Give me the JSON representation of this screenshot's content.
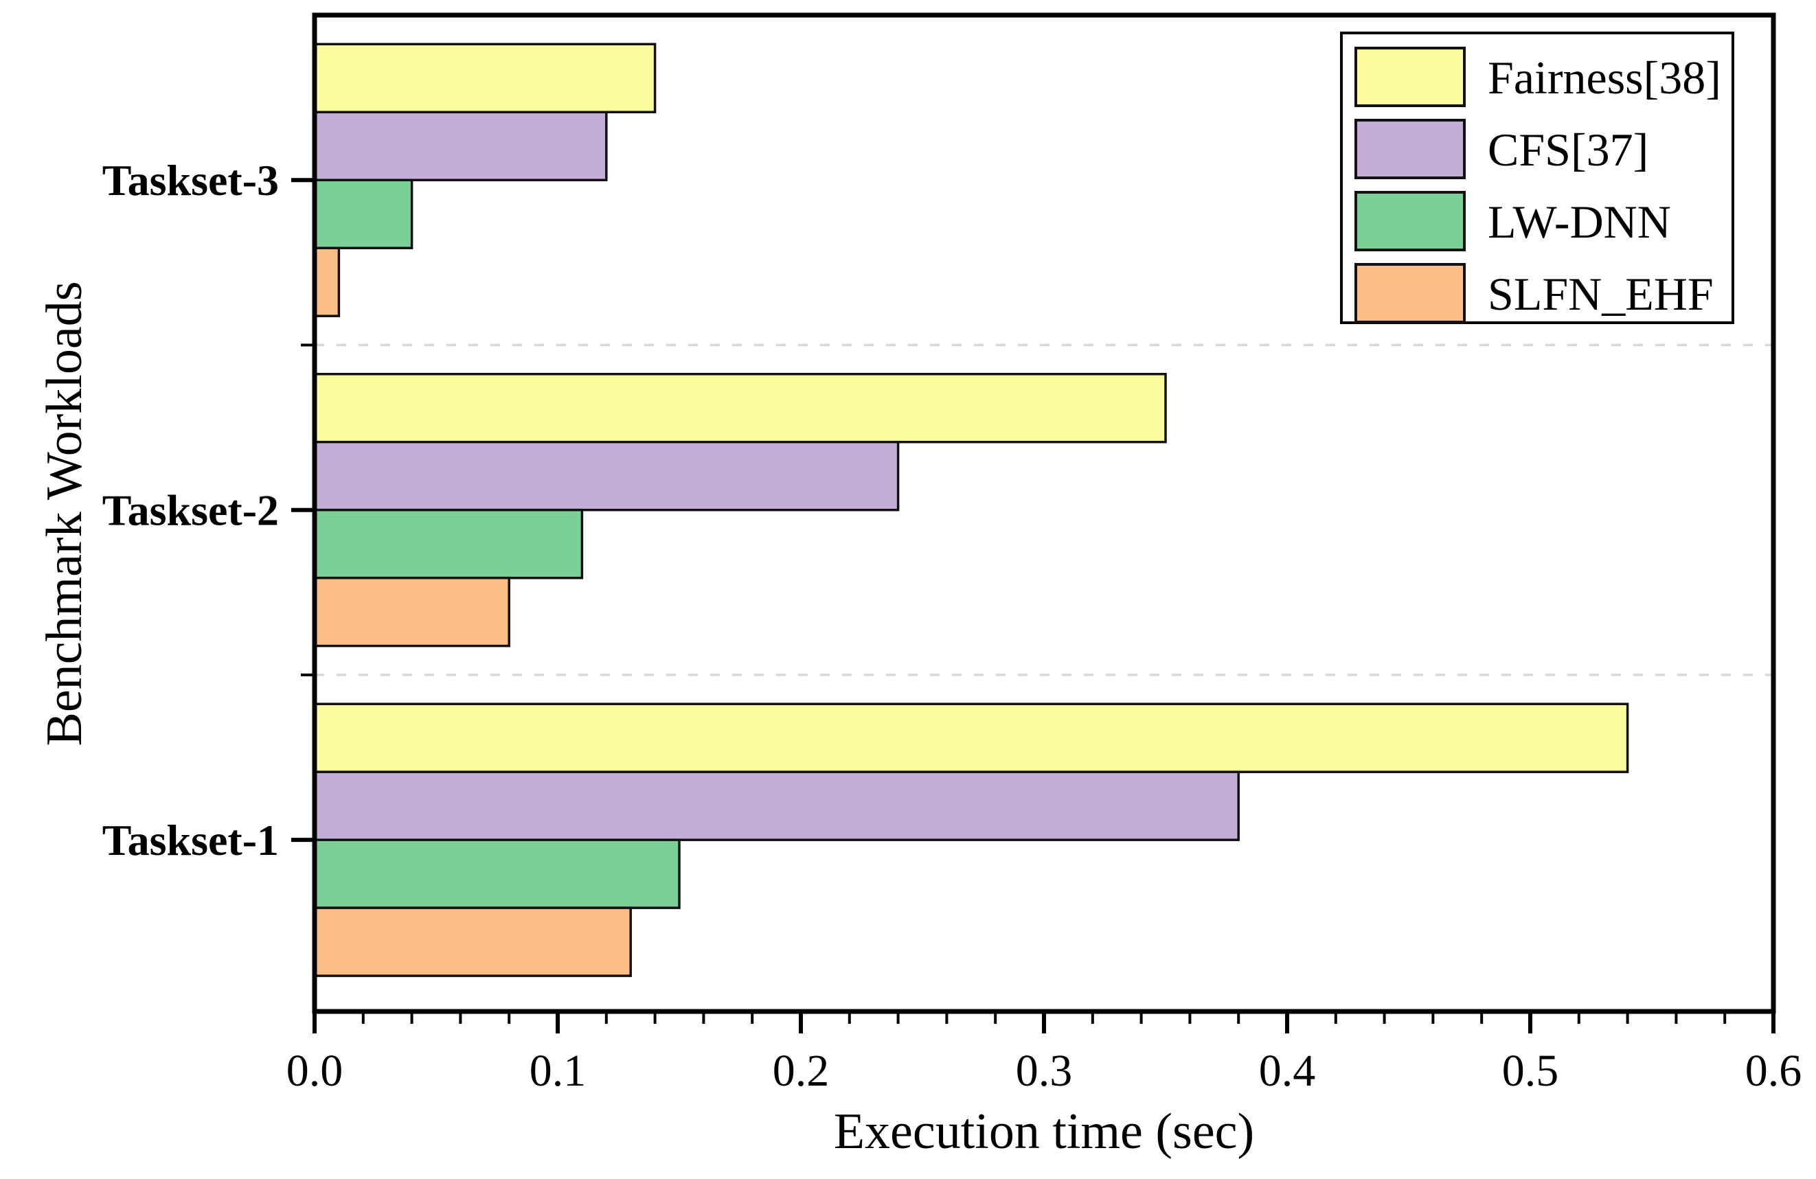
{
  "figure": {
    "background": "#ffffff",
    "frame_color": "#000000"
  },
  "chart_data": {
    "type": "bar",
    "orientation": "horizontal",
    "title": "",
    "xlabel": "Execution time (sec)",
    "ylabel": "Benchmark Workloads",
    "categories": [
      "Taskset-1",
      "Taskset-2",
      "Taskset-3"
    ],
    "series": [
      {
        "name": "Fairness[38]",
        "color": "#FCFC9D",
        "values": [
          0.54,
          0.35,
          0.14
        ]
      },
      {
        "name": "CFS[37]",
        "color": "#C4AED8",
        "values": [
          0.38,
          0.24,
          0.12
        ]
      },
      {
        "name": "LW-DNN",
        "color": "#7BD098",
        "values": [
          0.15,
          0.11,
          0.04
        ]
      },
      {
        "name": "SLFN_EHF",
        "color": "#FBBE87",
        "values": [
          0.13,
          0.08,
          0.01
        ]
      }
    ],
    "xlim": [
      0.0,
      0.6
    ],
    "x_tick_labels": [
      "0.0",
      "0.1",
      "0.2",
      "0.3",
      "0.4",
      "0.5",
      "0.6"
    ],
    "x_minor_tick_step": 0.02,
    "grid": "dashed gray horizontal separators between category groups",
    "gridline_color": "#d8d8d8",
    "bar_edge_color": "#111111",
    "legend_position": "top-right",
    "legend_border_color": "#000000"
  }
}
